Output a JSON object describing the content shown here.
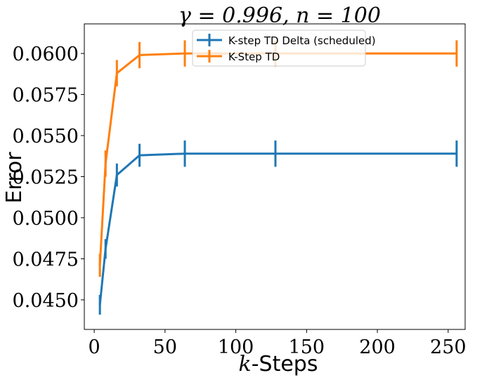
{
  "chart_data": {
    "type": "line",
    "title": "γ = 0.996, n = 100",
    "xlabel_var": "k",
    "xlabel_rest": "-Steps",
    "ylabel": "Error",
    "xlim": [
      -7,
      262
    ],
    "ylim": [
      0.0432,
      0.0618
    ],
    "xticks": [
      0,
      50,
      100,
      150,
      200,
      250
    ],
    "yticks": [
      0.045,
      0.0475,
      0.05,
      0.0525,
      0.055,
      0.0575,
      0.06
    ],
    "ytick_labels": [
      "0.0450",
      "0.0475",
      "0.0500",
      "0.0525",
      "0.0550",
      "0.0575",
      "0.0600"
    ],
    "legend_position": "upper center",
    "series": [
      {
        "name": "K-step TD Delta (scheduled)",
        "color": "#1f77b4",
        "x": [
          4,
          8,
          16,
          32,
          64,
          128,
          256
        ],
        "y": [
          0.0447,
          0.0481,
          0.0526,
          0.0538,
          0.0539,
          0.0539,
          0.0539
        ],
        "err": [
          0.0006,
          0.0006,
          0.0007,
          0.0007,
          0.0008,
          0.0008,
          0.0008
        ]
      },
      {
        "name": "K-Step TD",
        "color": "#ff7f0e",
        "x": [
          4,
          8,
          16,
          32,
          64,
          128,
          256
        ],
        "y": [
          0.0471,
          0.0533,
          0.0588,
          0.0599,
          0.06,
          0.06,
          0.06
        ],
        "err": [
          0.0007,
          0.0008,
          0.0008,
          0.0008,
          0.0008,
          0.0008,
          0.0008
        ]
      }
    ]
  }
}
